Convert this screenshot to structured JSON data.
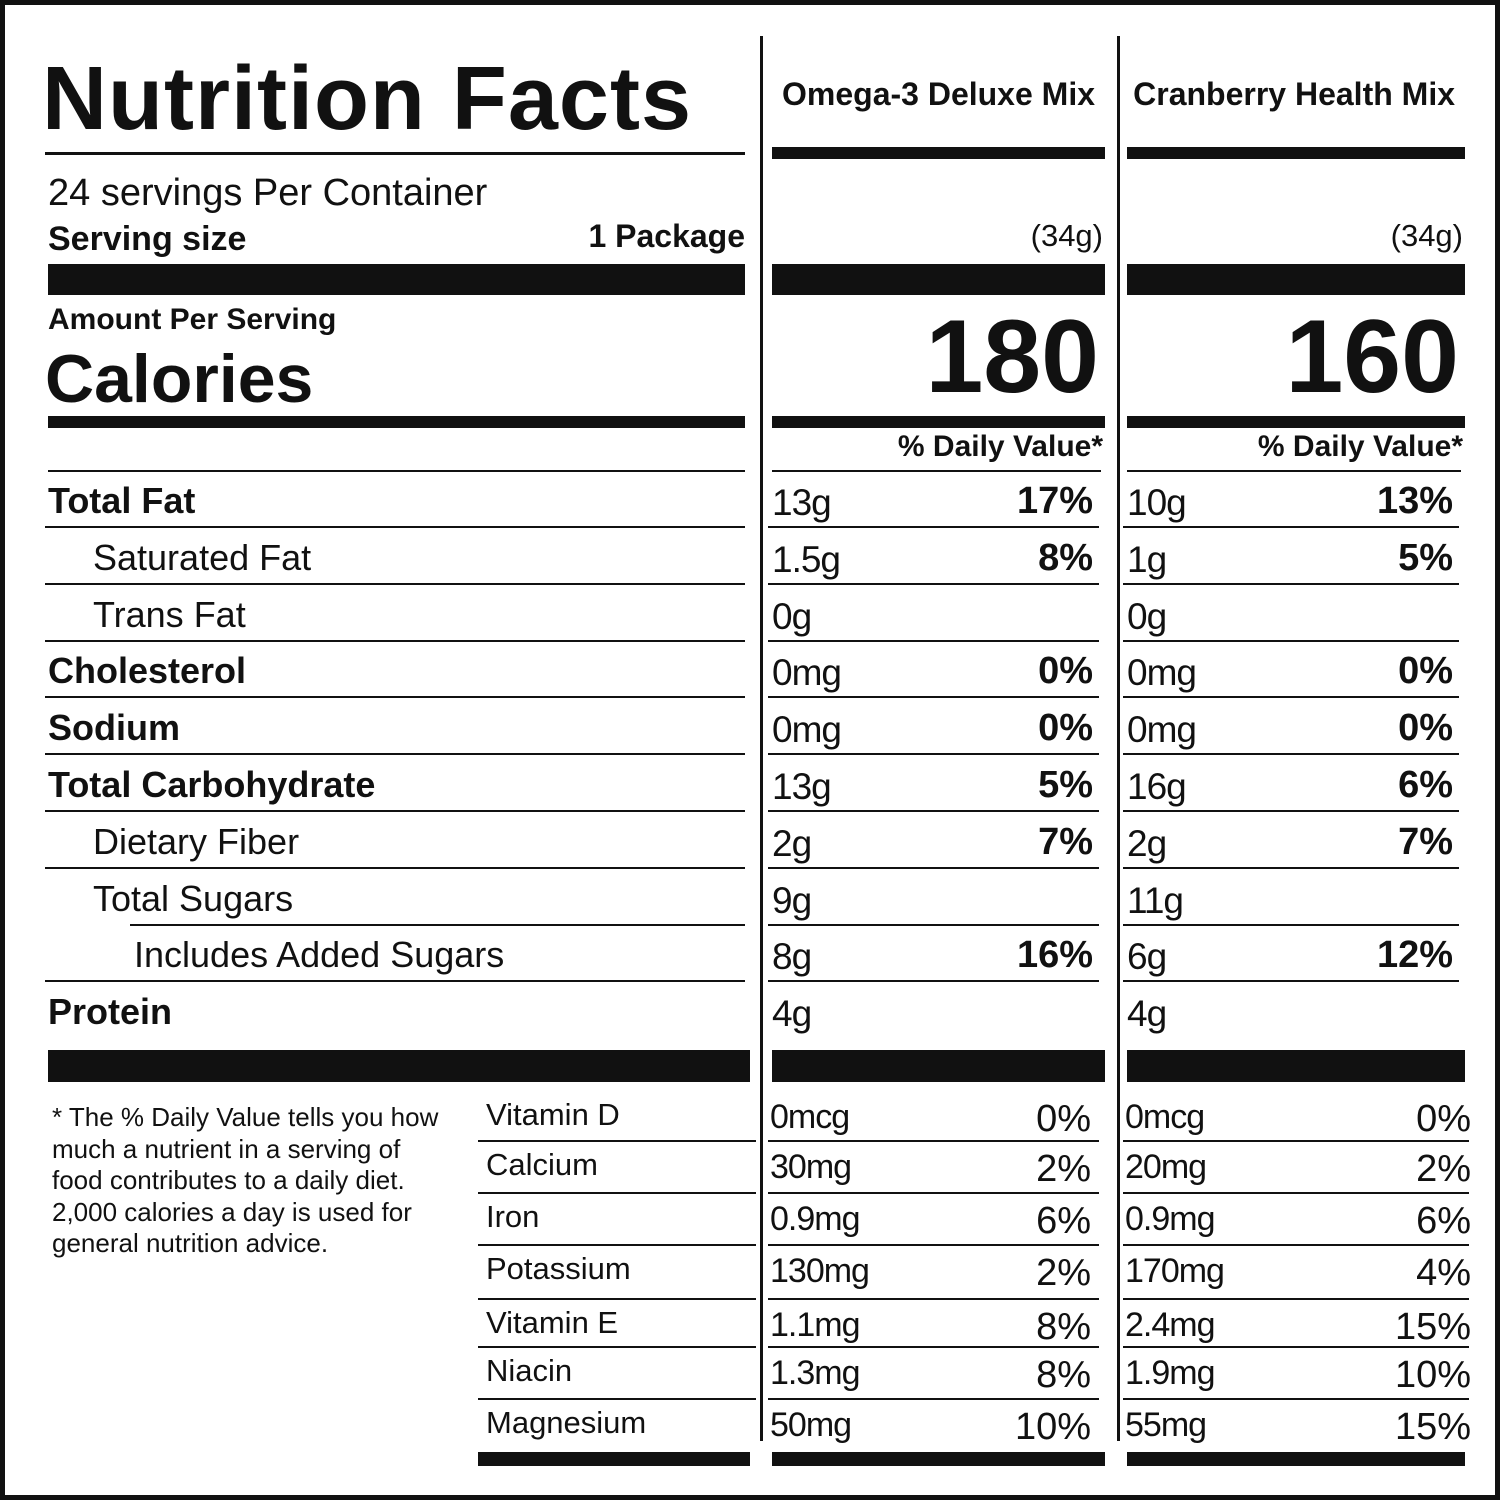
{
  "title": "Nutrition Facts",
  "servings": "24 servings Per Container",
  "serving_size_label": "Serving size",
  "serving_size_value": "1 Package",
  "amount_per_serving": "Amount Per Serving",
  "calories_label": "Calories",
  "products": [
    {
      "name": "Omega-3 Deluxe Mix",
      "weight": "(34g)",
      "calories": "180",
      "dv_header": "% Daily Value*"
    },
    {
      "name": "Cranberry Health Mix",
      "weight": "(34g)",
      "calories": "160",
      "dv_header": "% Daily Value*"
    }
  ],
  "nutrients": [
    {
      "label": "Total Fat",
      "bold": true,
      "indent": 0,
      "values": [
        {
          "amount": "13g",
          "dv": "17%"
        },
        {
          "amount": "10g",
          "dv": "13%"
        }
      ]
    },
    {
      "label": "Saturated Fat",
      "bold": false,
      "indent": 1,
      "values": [
        {
          "amount": "1.5g",
          "dv": "8%"
        },
        {
          "amount": "1g",
          "dv": "5%"
        }
      ]
    },
    {
      "label": "Trans Fat",
      "bold": false,
      "indent": 1,
      "values": [
        {
          "amount": "0g",
          "dv": ""
        },
        {
          "amount": "0g",
          "dv": ""
        }
      ]
    },
    {
      "label": "Cholesterol",
      "bold": true,
      "indent": 0,
      "values": [
        {
          "amount": "0mg",
          "dv": "0%"
        },
        {
          "amount": "0mg",
          "dv": "0%"
        }
      ]
    },
    {
      "label": "Sodium",
      "bold": true,
      "indent": 0,
      "values": [
        {
          "amount": "0mg",
          "dv": "0%"
        },
        {
          "amount": "0mg",
          "dv": "0%"
        }
      ]
    },
    {
      "label": "Total Carbohydrate",
      "bold": true,
      "indent": 0,
      "values": [
        {
          "amount": "13g",
          "dv": "5%"
        },
        {
          "amount": "16g",
          "dv": "6%"
        }
      ]
    },
    {
      "label": "Dietary Fiber",
      "bold": false,
      "indent": 1,
      "values": [
        {
          "amount": "2g",
          "dv": "7%"
        },
        {
          "amount": "2g",
          "dv": "7%"
        }
      ]
    },
    {
      "label": "Total Sugars",
      "bold": false,
      "indent": 1,
      "values": [
        {
          "amount": "9g",
          "dv": ""
        },
        {
          "amount": "11g",
          "dv": ""
        }
      ]
    },
    {
      "label": "Includes Added Sugars",
      "bold": false,
      "indent": 2,
      "values": [
        {
          "amount": "8g",
          "dv": "16%"
        },
        {
          "amount": "6g",
          "dv": "12%"
        }
      ]
    },
    {
      "label": "Protein",
      "bold": true,
      "indent": 0,
      "values": [
        {
          "amount": "4g",
          "dv": ""
        },
        {
          "amount": "4g",
          "dv": ""
        }
      ]
    }
  ],
  "vitamins": [
    {
      "label": "Vitamin D",
      "values": [
        {
          "amount": "0mcg",
          "dv": "0%"
        },
        {
          "amount": "0mcg",
          "dv": "0%"
        }
      ]
    },
    {
      "label": "Calcium",
      "values": [
        {
          "amount": "30mg",
          "dv": "2%"
        },
        {
          "amount": "20mg",
          "dv": "2%"
        }
      ]
    },
    {
      "label": "Iron",
      "values": [
        {
          "amount": "0.9mg",
          "dv": "6%"
        },
        {
          "amount": "0.9mg",
          "dv": "6%"
        }
      ]
    },
    {
      "label": "Potassium",
      "values": [
        {
          "amount": "130mg",
          "dv": "2%"
        },
        {
          "amount": "170mg",
          "dv": "4%"
        }
      ]
    },
    {
      "label": "Vitamin E",
      "values": [
        {
          "amount": "1.1mg",
          "dv": "8%"
        },
        {
          "amount": "2.4mg",
          "dv": "15%"
        }
      ]
    },
    {
      "label": "Niacin",
      "values": [
        {
          "amount": "1.3mg",
          "dv": "8%"
        },
        {
          "amount": "1.9mg",
          "dv": "10%"
        }
      ]
    },
    {
      "label": "Magnesium",
      "values": [
        {
          "amount": "50mg",
          "dv": "10%"
        },
        {
          "amount": "55mg",
          "dv": "15%"
        }
      ]
    }
  ],
  "footnote": "* The % Daily Value tells you how much a nutrient in a serving of food contributes to a daily diet. 2,000 calories a day is used for general nutrition advice."
}
